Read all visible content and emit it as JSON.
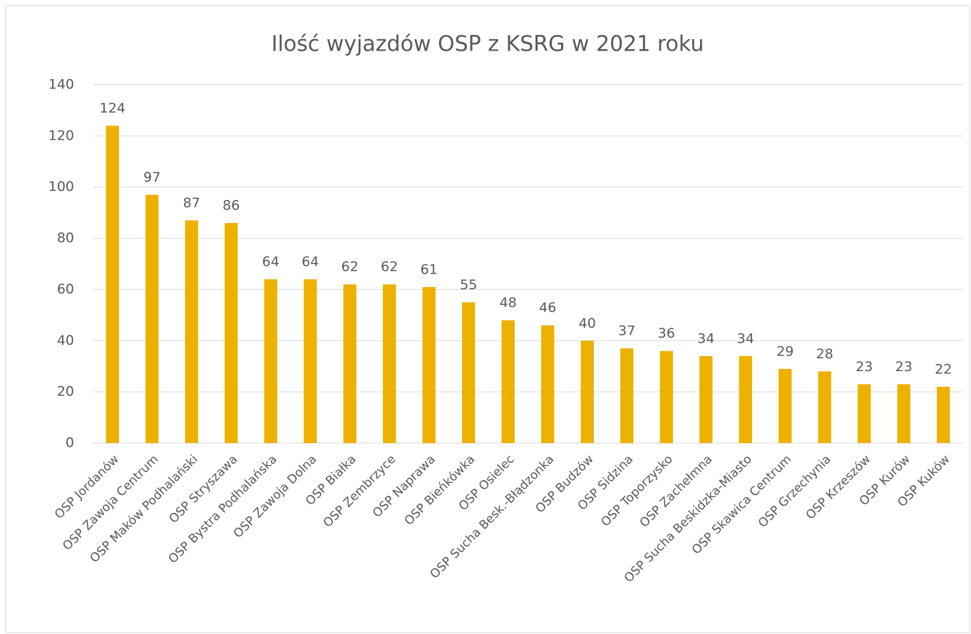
{
  "chart_data": {
    "type": "bar",
    "title": "Ilość wyjazdów OSP z KSRG w 2021 roku",
    "categories": [
      "OSP Jordanów",
      "OSP Zawoja Centrum",
      "OSP Maków Podhalański",
      "OSP Stryszawa",
      "OSP Bystra Podhalańska",
      "OSP Zawoja Dolna",
      "OSP Białka",
      "OSP Zembrzyce",
      "OSP Naprawa",
      "OSP Bieńkówka",
      "OSP Osielec",
      "OSP Sucha Besk.-Błądzonka",
      "OSP Budzów",
      "OSP Sidzina",
      "OSP Toporzysko",
      "OSP Zachełmna",
      "OSP Sucha Beskidzka-Miasto",
      "OSP Skawica Centrum",
      "OSP Grzechynia",
      "OSP Krzeszów",
      "OSP Kurów",
      "OSP Kuków"
    ],
    "values": [
      124,
      97,
      87,
      86,
      64,
      64,
      62,
      62,
      61,
      55,
      48,
      46,
      40,
      37,
      36,
      34,
      34,
      29,
      28,
      23,
      23,
      22
    ],
    "color": "#edb100",
    "ylim": [
      0,
      140
    ],
    "yticks": [
      0,
      20,
      40,
      60,
      80,
      100,
      120,
      140
    ],
    "grid": true
  }
}
